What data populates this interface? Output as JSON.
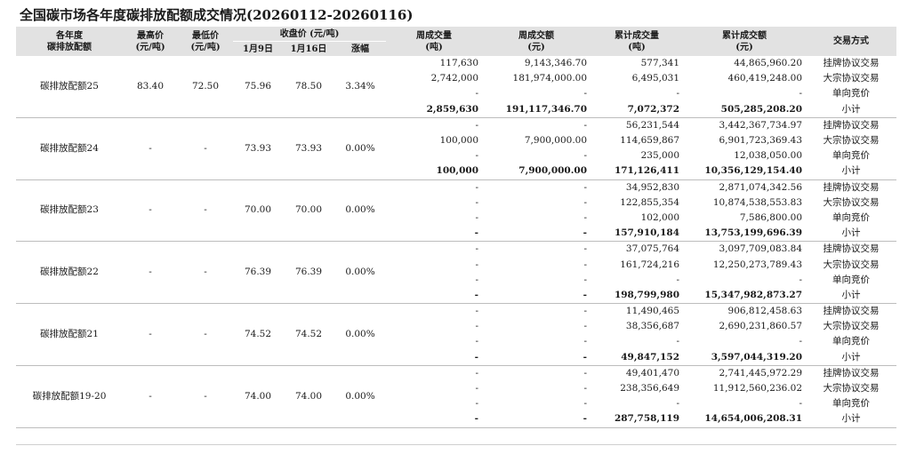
{
  "title": "全国碳市场各年度碳排放配额成交情况(20260112-20260116)",
  "headers": {
    "year": "各年度\n碳排放配额",
    "high": "最高价\n(元/吨)",
    "low": "最低价\n(元/吨)",
    "close": "收盘价 (元/吨)",
    "close_jan9": "1月9日",
    "close_jan16": "1月16日",
    "change": "涨幅",
    "week_volume": "周成交量\n(吨)",
    "week_amount": "周成交额\n(元)",
    "cum_volume": "累计成交量\n(吨)",
    "cum_amount": "累计成交额\n(元)",
    "method": "交易方式"
  },
  "groups": [
    {
      "name": "碳排放配额25",
      "high": "83.40",
      "low": "72.50",
      "close_jan9": "75.96",
      "close_jan16": "78.50",
      "change": "3.34%",
      "rows": [
        {
          "week_volume": "117,630",
          "week_amount": "9,143,346.70",
          "cum_volume": "577,341",
          "cum_amount": "44,865,960.20",
          "method": "挂牌协议交易"
        },
        {
          "week_volume": "2,742,000",
          "week_amount": "181,974,000.00",
          "cum_volume": "6,495,031",
          "cum_amount": "460,419,248.00",
          "method": "大宗协议交易"
        },
        {
          "week_volume": "-",
          "week_amount": "-",
          "cum_volume": "-",
          "cum_amount": "-",
          "method": "单向竞价"
        },
        {
          "week_volume": "2,859,630",
          "week_amount": "191,117,346.70",
          "cum_volume": "7,072,372",
          "cum_amount": "505,285,208.20",
          "method": "小计",
          "subtotal": true
        }
      ]
    },
    {
      "name": "碳排放配额24",
      "high": "-",
      "low": "-",
      "close_jan9": "73.93",
      "close_jan16": "73.93",
      "change": "0.00%",
      "rows": [
        {
          "week_volume": "-",
          "week_amount": "-",
          "cum_volume": "56,231,544",
          "cum_amount": "3,442,367,734.97",
          "method": "挂牌协议交易"
        },
        {
          "week_volume": "100,000",
          "week_amount": "7,900,000.00",
          "cum_volume": "114,659,867",
          "cum_amount": "6,901,723,369.43",
          "method": "大宗协议交易"
        },
        {
          "week_volume": "-",
          "week_amount": "-",
          "cum_volume": "235,000",
          "cum_amount": "12,038,050.00",
          "method": "单向竞价"
        },
        {
          "week_volume": "100,000",
          "week_amount": "7,900,000.00",
          "cum_volume": "171,126,411",
          "cum_amount": "10,356,129,154.40",
          "method": "小计",
          "subtotal": true
        }
      ]
    },
    {
      "name": "碳排放配额23",
      "high": "-",
      "low": "-",
      "close_jan9": "70.00",
      "close_jan16": "70.00",
      "change": "0.00%",
      "rows": [
        {
          "week_volume": "-",
          "week_amount": "-",
          "cum_volume": "34,952,830",
          "cum_amount": "2,871,074,342.56",
          "method": "挂牌协议交易"
        },
        {
          "week_volume": "-",
          "week_amount": "-",
          "cum_volume": "122,855,354",
          "cum_amount": "10,874,538,553.83",
          "method": "大宗协议交易"
        },
        {
          "week_volume": "-",
          "week_amount": "-",
          "cum_volume": "102,000",
          "cum_amount": "7,586,800.00",
          "method": "单向竞价"
        },
        {
          "week_volume": "-",
          "week_amount": "-",
          "cum_volume": "157,910,184",
          "cum_amount": "13,753,199,696.39",
          "method": "小计",
          "subtotal": true
        }
      ]
    },
    {
      "name": "碳排放配额22",
      "high": "-",
      "low": "-",
      "close_jan9": "76.39",
      "close_jan16": "76.39",
      "change": "0.00%",
      "rows": [
        {
          "week_volume": "-",
          "week_amount": "-",
          "cum_volume": "37,075,764",
          "cum_amount": "3,097,709,083.84",
          "method": "挂牌协议交易"
        },
        {
          "week_volume": "-",
          "week_amount": "-",
          "cum_volume": "161,724,216",
          "cum_amount": "12,250,273,789.43",
          "method": "大宗协议交易"
        },
        {
          "week_volume": "-",
          "week_amount": "-",
          "cum_volume": "-",
          "cum_amount": "-",
          "method": "单向竞价"
        },
        {
          "week_volume": "-",
          "week_amount": "-",
          "cum_volume": "198,799,980",
          "cum_amount": "15,347,982,873.27",
          "method": "小计",
          "subtotal": true
        }
      ]
    },
    {
      "name": "碳排放配额21",
      "high": "-",
      "low": "-",
      "close_jan9": "74.52",
      "close_jan16": "74.52",
      "change": "0.00%",
      "rows": [
        {
          "week_volume": "-",
          "week_amount": "-",
          "cum_volume": "11,490,465",
          "cum_amount": "906,812,458.63",
          "method": "挂牌协议交易"
        },
        {
          "week_volume": "-",
          "week_amount": "-",
          "cum_volume": "38,356,687",
          "cum_amount": "2,690,231,860.57",
          "method": "大宗协议交易"
        },
        {
          "week_volume": "-",
          "week_amount": "-",
          "cum_volume": "-",
          "cum_amount": "-",
          "method": "单向竞价"
        },
        {
          "week_volume": "-",
          "week_amount": "-",
          "cum_volume": "49,847,152",
          "cum_amount": "3,597,044,319.20",
          "method": "小计",
          "subtotal": true
        }
      ]
    },
    {
      "name": "碳排放配额19-20",
      "high": "-",
      "low": "-",
      "close_jan9": "74.00",
      "close_jan16": "74.00",
      "change": "0.00%",
      "rows": [
        {
          "week_volume": "-",
          "week_amount": "-",
          "cum_volume": "49,401,470",
          "cum_amount": "2,741,445,972.29",
          "method": "挂牌协议交易"
        },
        {
          "week_volume": "-",
          "week_amount": "-",
          "cum_volume": "238,356,649",
          "cum_amount": "11,912,560,236.02",
          "method": "大宗协议交易"
        },
        {
          "week_volume": "-",
          "week_amount": "-",
          "cum_volume": "-",
          "cum_amount": "-",
          "method": "单向竞价"
        },
        {
          "week_volume": "-",
          "week_amount": "-",
          "cum_volume": "287,758,119",
          "cum_amount": "14,654,006,208.31",
          "method": "小计",
          "subtotal": true
        }
      ]
    }
  ]
}
